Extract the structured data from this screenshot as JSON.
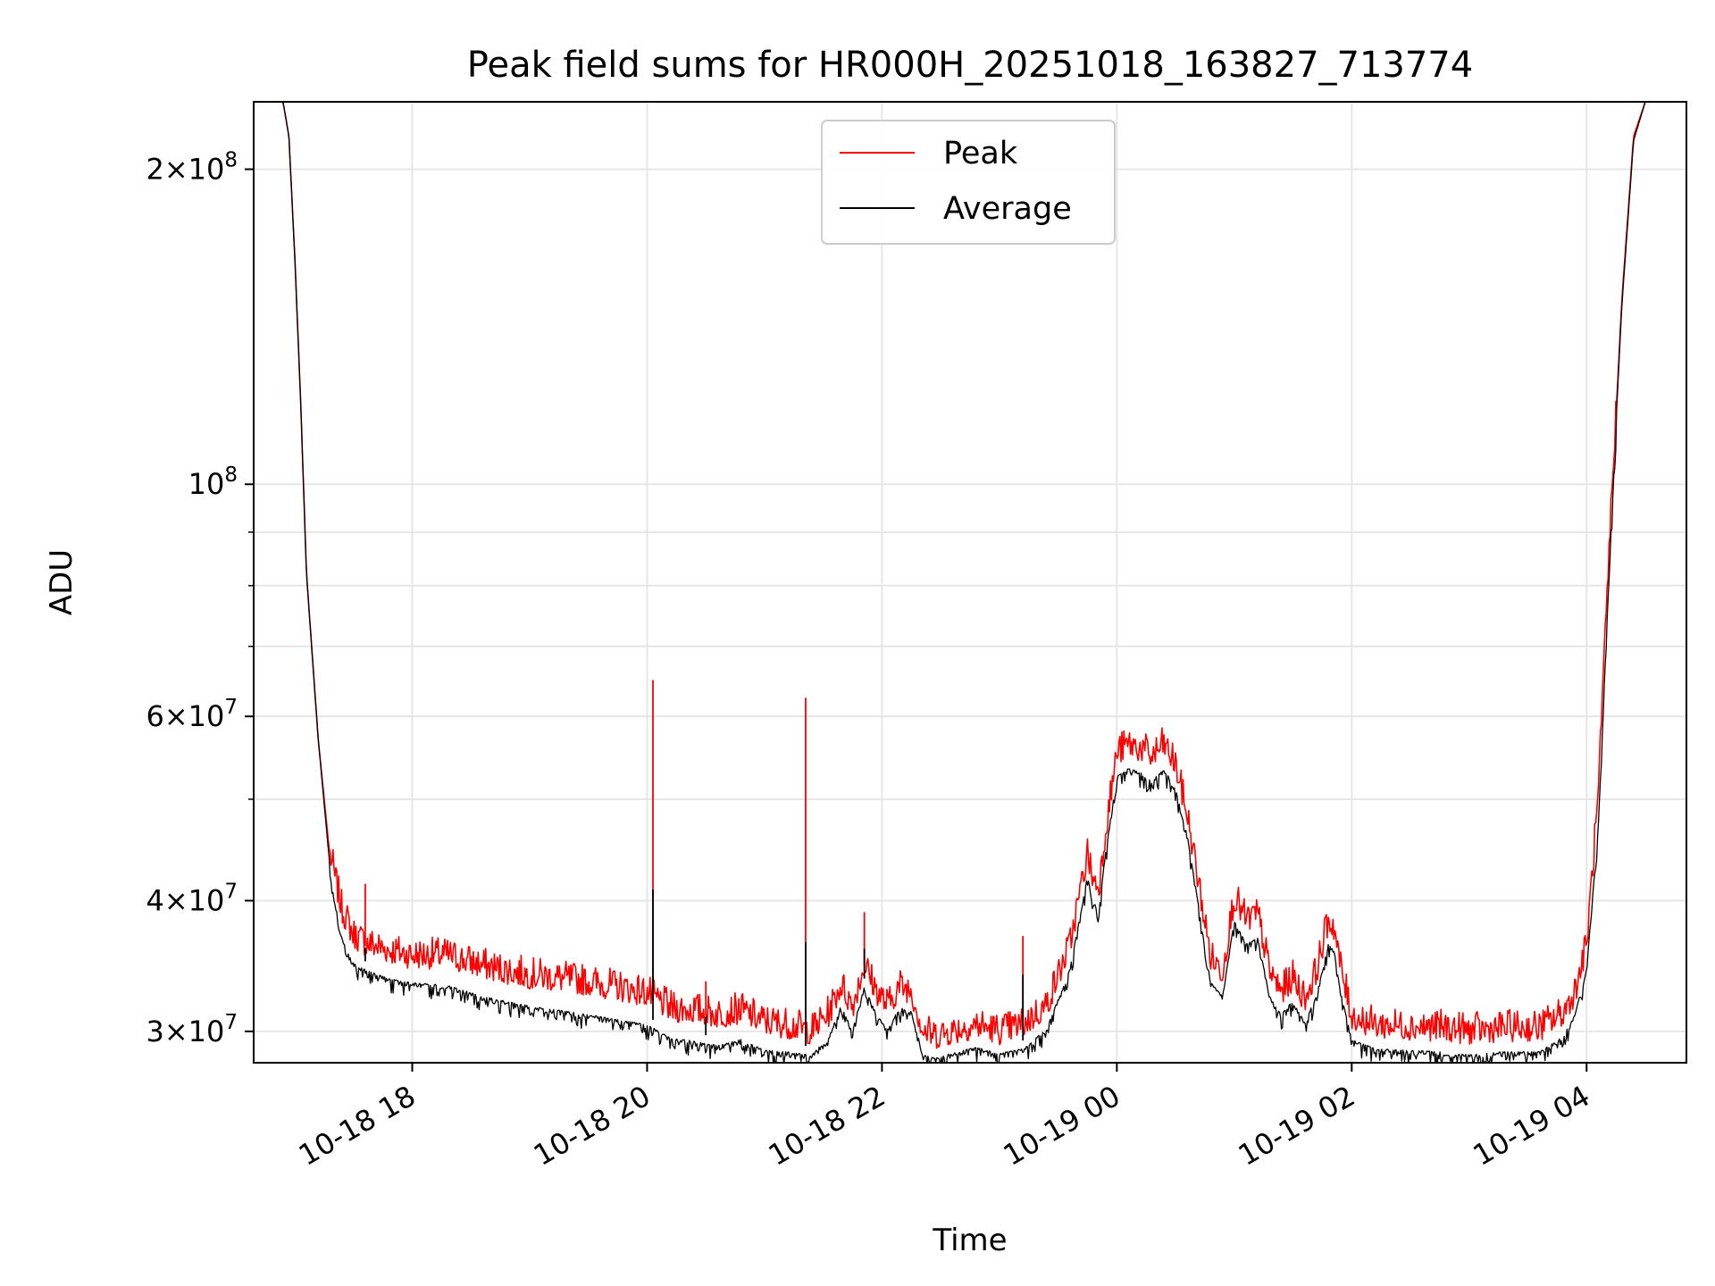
{
  "chart_data": {
    "type": "line",
    "title": "Peak field sums for HR000H_20251018_163827_713774",
    "xlabel": "Time",
    "ylabel": "ADU",
    "yscale": "log",
    "xlim_hours": [
      16.65,
      28.85
    ],
    "ylim": [
      28000000,
      232000000
    ],
    "grid": true,
    "legend_location": "upper center",
    "x_ticks": [
      {
        "hour": 18,
        "label": "10-18 18"
      },
      {
        "hour": 20,
        "label": "10-18 20"
      },
      {
        "hour": 22,
        "label": "10-18 22"
      },
      {
        "hour": 24,
        "label": "10-19 00"
      },
      {
        "hour": 26,
        "label": "10-19 02"
      },
      {
        "hour": 28,
        "label": "10-19 04"
      }
    ],
    "y_major_ticks": [
      {
        "value": 30000000,
        "mantissa": "3",
        "exponent": "7"
      },
      {
        "value": 40000000,
        "mantissa": "4",
        "exponent": "7"
      },
      {
        "value": 60000000,
        "mantissa": "6",
        "exponent": "7"
      },
      {
        "value": 100000000,
        "mantissa": "",
        "exponent": "8"
      },
      {
        "value": 200000000,
        "mantissa": "2",
        "exponent": "8"
      }
    ],
    "y_minor_grid": [
      50000000,
      70000000,
      80000000,
      90000000
    ],
    "series": [
      {
        "name": "Peak",
        "color": "#ff0000",
        "x": [
          16.65,
          16.9,
          16.95,
          17.0,
          17.05,
          17.1,
          17.2,
          17.3,
          17.4,
          17.5,
          17.6,
          17.8,
          18.0,
          18.3,
          18.6,
          19.0,
          19.5,
          20.0,
          20.2,
          20.4,
          20.6,
          20.8,
          21.0,
          21.2,
          21.4,
          21.55,
          21.65,
          21.75,
          21.85,
          21.95,
          22.05,
          22.15,
          22.25,
          22.35,
          22.45,
          22.6,
          22.8,
          23.0,
          23.2,
          23.4,
          23.6,
          23.75,
          23.8,
          23.85,
          23.9,
          24.0,
          24.1,
          24.2,
          24.3,
          24.4,
          24.5,
          24.6,
          24.7,
          24.8,
          24.9,
          25.0,
          25.1,
          25.2,
          25.3,
          25.4,
          25.5,
          25.6,
          25.7,
          25.8,
          25.85,
          25.9,
          26.0,
          26.2,
          26.5,
          26.8,
          27.0,
          27.3,
          27.6,
          27.8,
          27.9,
          28.0,
          28.1,
          28.2,
          28.3,
          28.4,
          28.5,
          28.55,
          28.85
        ],
        "y": [
          232000000,
          232000000,
          215000000,
          165000000,
          120000000,
          82000000,
          57000000,
          44000000,
          39000000,
          36800000,
          36200000,
          35600000,
          35200000,
          35200000,
          34400000,
          33700000,
          33200000,
          32400000,
          31300000,
          31200000,
          30900000,
          31200000,
          30400000,
          30200000,
          29800000,
          31000000,
          33000000,
          31500000,
          34500000,
          32600000,
          31500000,
          32900000,
          32600000,
          29800000,
          29500000,
          29800000,
          30200000,
          29800000,
          30200000,
          31500000,
          36000000,
          44000000,
          41500000,
          41000000,
          46000000,
          55000000,
          56000000,
          55500000,
          54500000,
          56000000,
          53500000,
          48000000,
          41000000,
          35000000,
          34000000,
          40000000,
          38000000,
          38500000,
          34000000,
          32500000,
          33500000,
          32000000,
          34000000,
          38000000,
          37500000,
          34500000,
          30800000,
          30200000,
          30100000,
          30000000,
          29800000,
          30000000,
          30000000,
          31000000,
          32500000,
          36000000,
          50000000,
          90000000,
          150000000,
          215000000,
          232000000,
          232000000,
          232000000
        ]
      },
      {
        "name": "Average",
        "color": "#000000",
        "x": [
          16.65,
          16.9,
          16.95,
          17.0,
          17.05,
          17.1,
          17.2,
          17.3,
          17.4,
          17.5,
          17.6,
          17.8,
          18.0,
          18.3,
          18.6,
          19.0,
          19.5,
          20.0,
          20.2,
          20.4,
          20.6,
          20.8,
          21.0,
          21.2,
          21.4,
          21.55,
          21.65,
          21.75,
          21.85,
          21.95,
          22.05,
          22.15,
          22.25,
          22.35,
          22.45,
          22.6,
          22.8,
          23.0,
          23.2,
          23.4,
          23.6,
          23.75,
          23.8,
          23.85,
          23.9,
          24.0,
          24.1,
          24.2,
          24.3,
          24.4,
          24.5,
          24.6,
          24.7,
          24.8,
          24.9,
          25.0,
          25.1,
          25.2,
          25.3,
          25.4,
          25.5,
          25.6,
          25.7,
          25.8,
          25.85,
          25.9,
          26.0,
          26.2,
          26.5,
          26.8,
          27.0,
          27.3,
          27.6,
          27.8,
          27.9,
          28.0,
          28.1,
          28.2,
          28.3,
          28.4,
          28.5,
          28.55,
          28.85
        ],
        "y": [
          232000000,
          232000000,
          215000000,
          165000000,
          120000000,
          82000000,
          57000000,
          43000000,
          37500000,
          35500000,
          35000000,
          34300000,
          34000000,
          33800000,
          33000000,
          32300000,
          31700000,
          31000000,
          30100000,
          29900000,
          29600000,
          30000000,
          29300000,
          29200000,
          29000000,
          30200000,
          32300000,
          30700000,
          33700000,
          31800000,
          30700000,
          32200000,
          31900000,
          29000000,
          28800000,
          29100000,
          29500000,
          29100000,
          29400000,
          30700000,
          35000000,
          43000000,
          40500000,
          40000000,
          45000000,
          53500000,
          54500000,
          54000000,
          53000000,
          54500000,
          52000000,
          47000000,
          40000000,
          34000000,
          33000000,
          39000000,
          37000000,
          37500000,
          33000000,
          31700000,
          32700000,
          31200000,
          33000000,
          37000000,
          36500000,
          33500000,
          30000000,
          29400000,
          29300000,
          29200000,
          29000000,
          29200000,
          29200000,
          30200000,
          31700000,
          35000000,
          48000000,
          88000000,
          148000000,
          213000000,
          232000000,
          232000000,
          232000000
        ]
      }
    ],
    "spikes": [
      {
        "hour": 17.6,
        "peak": 41500000,
        "average": 36000000
      },
      {
        "hour": 20.05,
        "peak": 65000000,
        "average": 41000000
      },
      {
        "hour": 20.5,
        "peak": 33500000,
        "average": 31000000
      },
      {
        "hour": 21.35,
        "peak": 62500000,
        "average": 36500000
      },
      {
        "hour": 21.85,
        "peak": 39000000,
        "average": 36000000
      },
      {
        "hour": 23.2,
        "peak": 37000000,
        "average": 34000000
      }
    ]
  }
}
